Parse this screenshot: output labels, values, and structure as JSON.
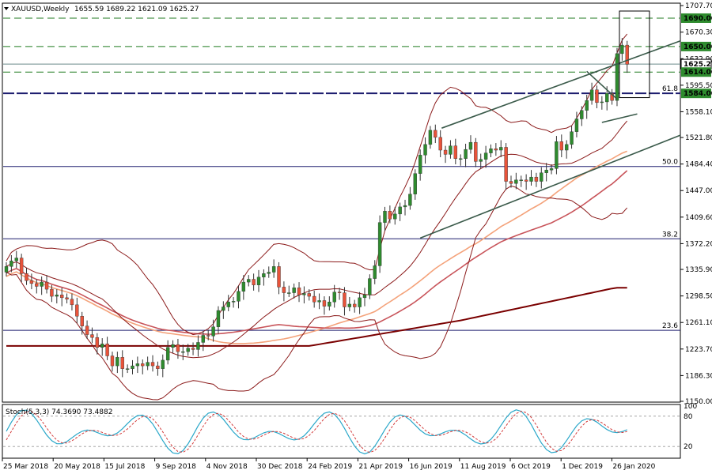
{
  "header": {
    "symbol_label": "XAUUSD,Weekly",
    "ohlc_text": "1655.59 1689.22 1621.09 1625.27"
  },
  "colors": {
    "up": "#2e8b2e",
    "down": "#e8533a",
    "grid_dash": "#1f7a1f",
    "fib_line": "#1c1c6e",
    "channel": "#3a5a4a",
    "bb": "#8b1a1a",
    "ma_light": "#f4a27a",
    "ma_mid": "#c8545a",
    "ma_dark": "#7a0000",
    "stoch_k": "#2aa7c9",
    "stoch_d": "#d23a3a"
  },
  "chart_data": {
    "type": "candlestick",
    "ylim": [
      1150,
      1710
    ],
    "price_ticks": [
      "1707.70",
      "1670.30",
      "1632.90",
      "1595.50",
      "1558.10",
      "1521.80",
      "1484.40",
      "1447.00",
      "1409.60",
      "1372.20",
      "1335.90",
      "1298.50",
      "1261.10",
      "1223.70",
      "1186.30",
      "1150.00"
    ],
    "date_ticks": [
      "25 Mar 2018",
      "20 May 2018",
      "15 Jul 2018",
      "9 Sep 2018",
      "4 Nov 2018",
      "30 Dec 2018",
      "24 Feb 2019",
      "21 Apr 2019",
      "16 Jun 2019",
      "11 Aug 2019",
      "6 Oct 2019",
      "1 Dec 2019",
      "26 Jan 2020"
    ],
    "level_boxes": [
      {
        "price": 1690.0,
        "label": "1690.00"
      },
      {
        "price": 1650.0,
        "label": "1650.00"
      },
      {
        "price": 1625.27,
        "label": "1625.27"
      },
      {
        "price": 1614.0,
        "label": "1614.00"
      },
      {
        "price": 1584.0,
        "label": "1584.00"
      }
    ],
    "dashed_levels": [
      1690,
      1650,
      1614
    ],
    "solid_levels": [
      1625.27
    ],
    "fib_levels": [
      {
        "price": 1584,
        "label": "61.8"
      },
      {
        "price": 1481,
        "label": "50.0"
      },
      {
        "price": 1379,
        "label": "38.2"
      },
      {
        "price": 1250,
        "label": "23.6"
      }
    ],
    "closes": [
      1340,
      1348,
      1352,
      1330,
      1320,
      1316,
      1312,
      1318,
      1308,
      1298,
      1300,
      1296,
      1294,
      1286,
      1270,
      1256,
      1244,
      1240,
      1226,
      1231,
      1214,
      1200,
      1212,
      1196,
      1196,
      1200,
      1203,
      1200,
      1205,
      1200,
      1196,
      1208,
      1226,
      1230,
      1220,
      1220,
      1225,
      1223,
      1233,
      1243,
      1242,
      1255,
      1278,
      1283,
      1290,
      1291,
      1305,
      1318,
      1322,
      1314,
      1325,
      1330,
      1332,
      1340,
      1311,
      1303,
      1303,
      1310,
      1300,
      1302,
      1298,
      1290,
      1292,
      1284,
      1290,
      1304,
      1303,
      1283,
      1287,
      1283,
      1296,
      1300,
      1323,
      1341,
      1402,
      1418,
      1407,
      1414,
      1424,
      1426,
      1442,
      1471,
      1497,
      1512,
      1532,
      1522,
      1504,
      1498,
      1510,
      1492,
      1492,
      1505,
      1515,
      1488,
      1491,
      1500,
      1506,
      1504,
      1508,
      1460,
      1457,
      1462,
      1462,
      1460,
      1466,
      1460,
      1472,
      1476,
      1478,
      1516,
      1504,
      1512,
      1530,
      1548,
      1560,
      1574,
      1589,
      1571,
      1572,
      1584,
      1574,
      1640,
      1652,
      1625
    ],
    "stoch": {
      "k": 74.369,
      "d": 73.4882,
      "levels": [
        20,
        80,
        100
      ]
    }
  },
  "stoch_label": "Stoch(5,3,3) 74.3690 73.4882"
}
